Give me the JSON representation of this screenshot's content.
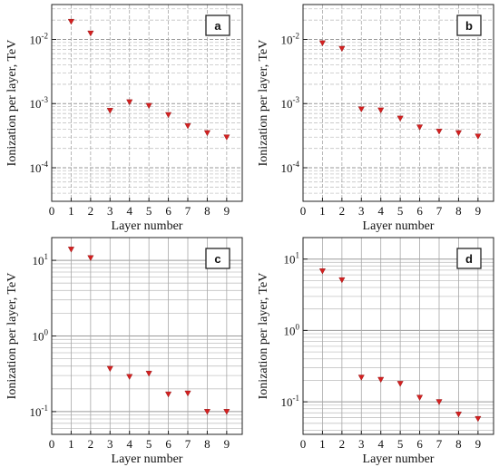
{
  "chart_data": [
    {
      "type": "scatter",
      "panel_label": "a",
      "xlabel": "Layer number",
      "ylabel": "Ionization per layer, TeV",
      "x_ticks": [
        0,
        1,
        2,
        3,
        4,
        5,
        6,
        7,
        8,
        9
      ],
      "xlim": [
        0,
        9.8
      ],
      "y_scale": "log",
      "ylim": [
        3e-05,
        0.035
      ],
      "y_ticks": [
        {
          "value": 0.01,
          "base": "10",
          "exp": "-2"
        },
        {
          "value": 0.001,
          "base": "10",
          "exp": "-3"
        },
        {
          "value": 0.0001,
          "base": "10",
          "exp": "-4"
        }
      ],
      "grid": true,
      "marker": "down-triangle",
      "color": "#d42020",
      "series": [
        {
          "x": [
            1,
            2,
            3,
            4,
            5,
            6,
            7,
            8,
            9
          ],
          "y": [
            0.019,
            0.0125,
            0.00078,
            0.00106,
            0.00093,
            0.00067,
            0.00045,
            0.00035,
            0.0003
          ]
        }
      ]
    },
    {
      "type": "scatter",
      "panel_label": "b",
      "xlabel": "Layer number",
      "ylabel": "Ionization per layer, TeV",
      "x_ticks": [
        0,
        1,
        2,
        3,
        4,
        5,
        6,
        7,
        8,
        9
      ],
      "xlim": [
        0,
        9.8
      ],
      "y_scale": "log",
      "ylim": [
        3e-05,
        0.035
      ],
      "y_ticks": [
        {
          "value": 0.01,
          "base": "10",
          "exp": "-2"
        },
        {
          "value": 0.001,
          "base": "10",
          "exp": "-3"
        },
        {
          "value": 0.0001,
          "base": "10",
          "exp": "-4"
        }
      ],
      "grid": true,
      "marker": "down-triangle",
      "color": "#d42020",
      "series": [
        {
          "x": [
            1,
            2,
            3,
            4,
            5,
            6,
            7,
            8,
            9
          ],
          "y": [
            0.0088,
            0.0072,
            0.00082,
            0.00079,
            0.00059,
            0.00043,
            0.00037,
            0.00035,
            0.00031
          ]
        }
      ]
    },
    {
      "type": "scatter",
      "panel_label": "c",
      "xlabel": "Layer number",
      "ylabel": "Ionization per layer, TeV",
      "x_ticks": [
        0,
        1,
        2,
        3,
        4,
        5,
        6,
        7,
        8,
        9
      ],
      "xlim": [
        0,
        9.8
      ],
      "y_scale": "log",
      "ylim": [
        0.05,
        20
      ],
      "y_ticks": [
        {
          "value": 10,
          "base": "10",
          "exp": "1"
        },
        {
          "value": 1,
          "base": "10",
          "exp": "0"
        },
        {
          "value": 0.1,
          "base": "10",
          "exp": "-1"
        }
      ],
      "grid": true,
      "marker": "down-triangle",
      "color": "#d42020",
      "series": [
        {
          "x": [
            1,
            2,
            3,
            4,
            5,
            6,
            7,
            8,
            9
          ],
          "y": [
            14.0,
            10.8,
            0.37,
            0.29,
            0.32,
            0.17,
            0.175,
            0.1,
            0.1
          ]
        }
      ]
    },
    {
      "type": "scatter",
      "panel_label": "d",
      "xlabel": "Layer number",
      "ylabel": "Ionization per layer, TeV",
      "x_ticks": [
        0,
        1,
        2,
        3,
        4,
        5,
        6,
        7,
        8,
        9
      ],
      "xlim": [
        0,
        9.8
      ],
      "y_scale": "log",
      "ylim": [
        0.035,
        20
      ],
      "y_ticks": [
        {
          "value": 10,
          "base": "10",
          "exp": "1"
        },
        {
          "value": 1,
          "base": "10",
          "exp": "0"
        },
        {
          "value": 0.1,
          "base": "10",
          "exp": "-1"
        }
      ],
      "grid": true,
      "marker": "down-triangle",
      "color": "#d42020",
      "series": [
        {
          "x": [
            1,
            2,
            3,
            4,
            5,
            6,
            7,
            8,
            9
          ],
          "y": [
            6.8,
            5.1,
            0.22,
            0.205,
            0.18,
            0.115,
            0.1,
            0.067,
            0.058
          ]
        }
      ]
    }
  ]
}
